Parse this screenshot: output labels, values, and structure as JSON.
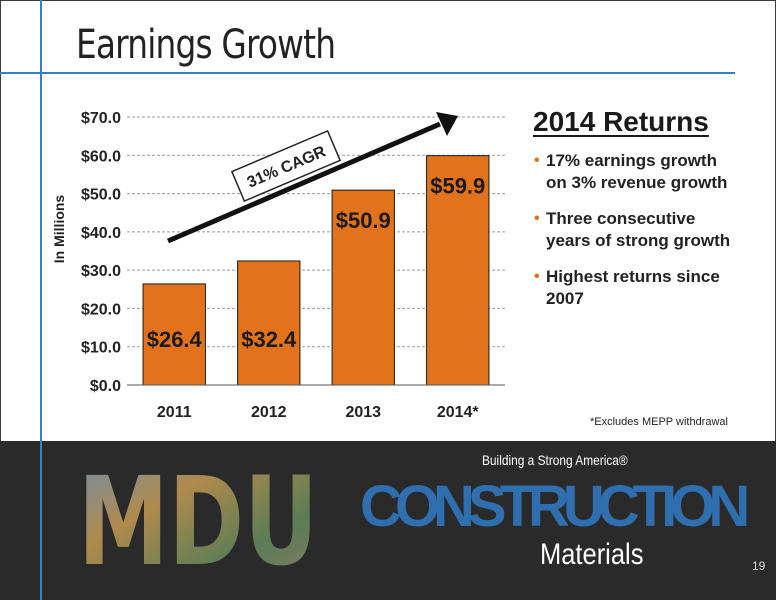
{
  "slide": {
    "title": "Earnings Growth",
    "page_number": "19"
  },
  "chart_data": {
    "type": "bar",
    "categories": [
      "2011",
      "2012",
      "2013",
      "2014*"
    ],
    "values": [
      26.4,
      32.4,
      50.9,
      59.9
    ],
    "data_labels": [
      "$26.4",
      "$32.4",
      "$50.9",
      "$59.9"
    ],
    "title": "",
    "xlabel": "",
    "ylabel": "In Millions",
    "ylim": [
      0,
      70
    ],
    "yticks": [
      0,
      10,
      20,
      30,
      40,
      50,
      60,
      70
    ],
    "ytick_labels": [
      "$0.0",
      "$10.0",
      "$20.0",
      "$30.0",
      "$40.0",
      "$50.0",
      "$60.0",
      "$70.0"
    ],
    "grid": true,
    "bar_color": "#e2731c",
    "annotation": "31% CAGR"
  },
  "returns": {
    "title": "2014 Returns",
    "bullets": [
      "17% earnings growth on 3% revenue growth",
      "Three consecutive years of strong growth",
      "Highest returns since 2007"
    ],
    "footnote": "*Excludes MEPP withdrawal"
  },
  "footer": {
    "tagline": "Building a Strong America®",
    "logo_letters": "MDU",
    "construction": "CONSTRUCTION",
    "materials": "Materials"
  },
  "colors": {
    "accent_blue": "#3a7fc0",
    "bar_orange": "#e2731c",
    "footer_bg": "#2a2a2a",
    "construction_blue": "#2f6fb0"
  }
}
